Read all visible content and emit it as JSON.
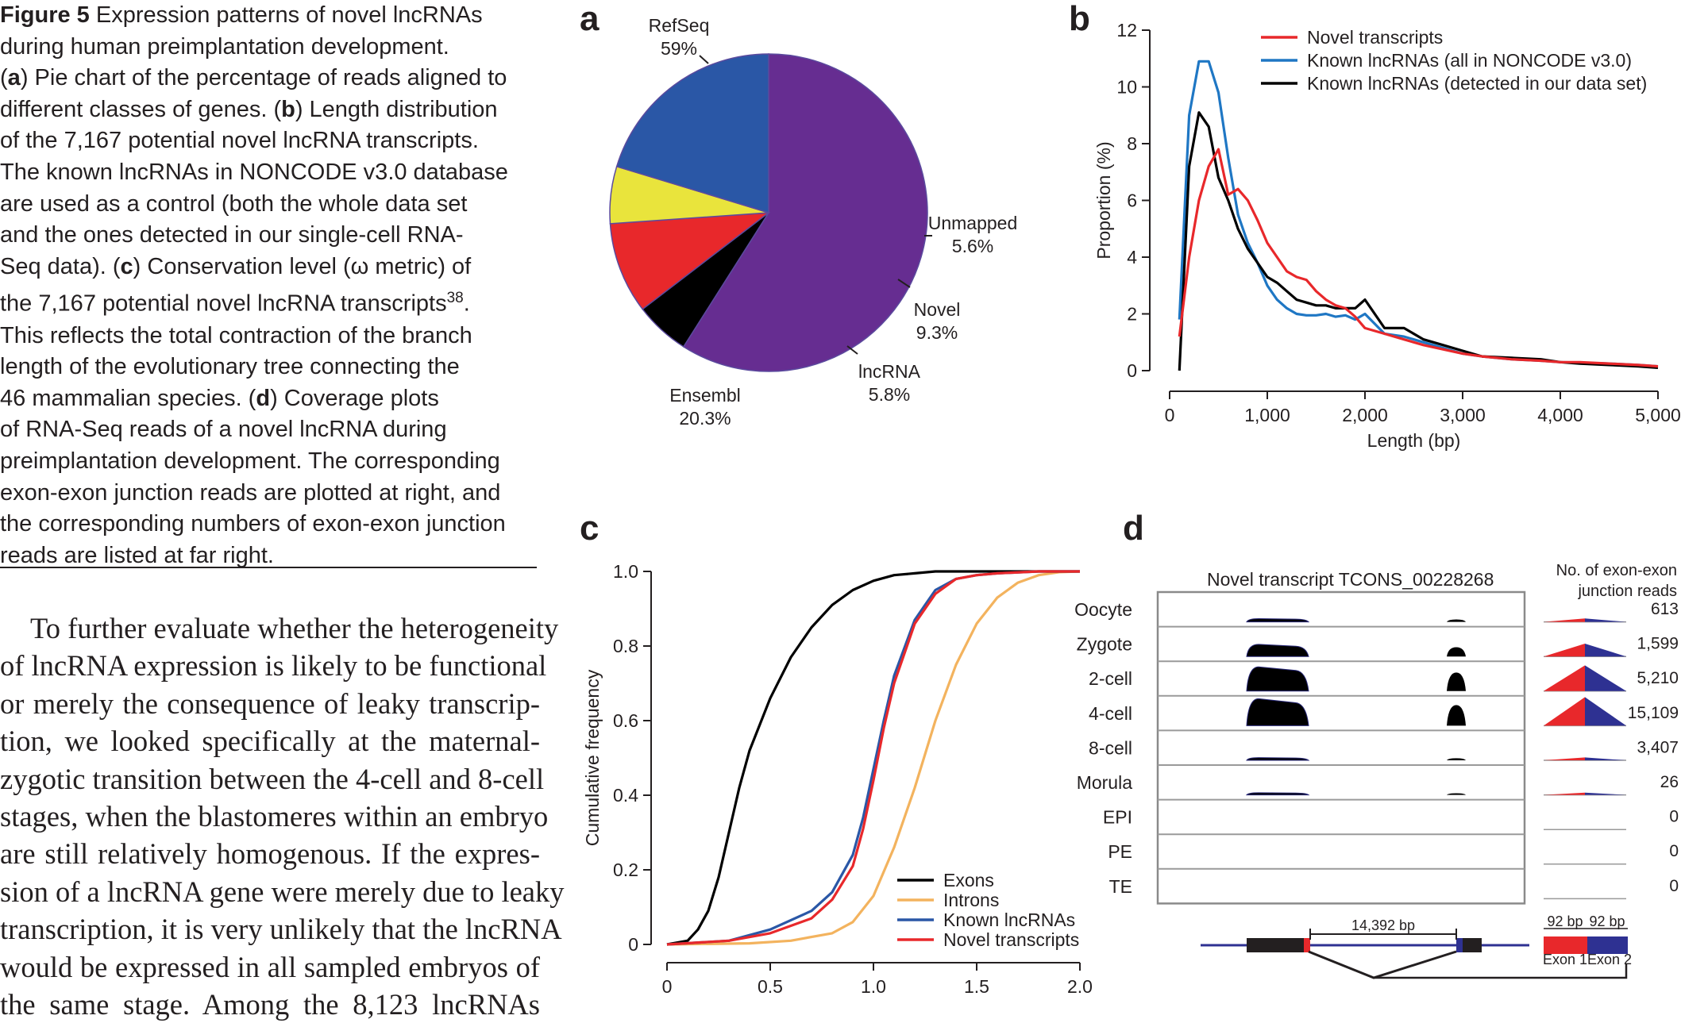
{
  "caption": {
    "lines": [
      {
        "pre": "",
        "bold": "Figure 5",
        "post": "  Expression patterns of novel lncRNAs"
      },
      {
        "pre": "during human preimplantation development.",
        "bold": "",
        "post": ""
      },
      {
        "pre": "(",
        "bold": "a",
        "post": ") Pie chart of the percentage of reads aligned to"
      },
      {
        "pre": "different classes of genes. (",
        "bold": "b",
        "post": ") Length distribution"
      },
      {
        "pre": "of the 7,167 potential novel lncRNA transcripts.",
        "bold": "",
        "post": ""
      },
      {
        "pre": "The known lncRNAs in NONCODE v3.0 database",
        "bold": "",
        "post": ""
      },
      {
        "pre": "are used as a control (both the whole data set",
        "bold": "",
        "post": ""
      },
      {
        "pre": "and the ones detected in our single-cell RNA-",
        "bold": "",
        "post": ""
      },
      {
        "pre": "Seq data). (",
        "bold": "c",
        "post": ") Conservation level (ω metric) of"
      },
      {
        "pre": "the 7,167 potential novel lncRNA transcripts",
        "bold": "",
        "post": "",
        "sup": "38",
        "after": "."
      },
      {
        "pre": "This reflects the total contraction of the branch",
        "bold": "",
        "post": ""
      },
      {
        "pre": "length of the evolutionary tree connecting the",
        "bold": "",
        "post": ""
      },
      {
        "pre": "46 mammalian species. (",
        "bold": "d",
        "post": ") Coverage plots"
      },
      {
        "pre": "of RNA-Seq reads of a novel lncRNA during",
        "bold": "",
        "post": ""
      },
      {
        "pre": "preimplantation development. The corresponding",
        "bold": "",
        "post": ""
      },
      {
        "pre": "exon-exon junction reads are plotted at right, and",
        "bold": "",
        "post": ""
      },
      {
        "pre": "the corresponding numbers of exon-exon junction",
        "bold": "",
        "post": ""
      },
      {
        "pre": "reads are listed at far right.",
        "bold": "",
        "post": ""
      }
    ]
  },
  "body": {
    "lines": [
      "To further evaluate whether the heterogeneity",
      "of lncRNA expression is likely to be functional",
      "or merely the consequence of leaky transcrip-",
      "tion, we looked specifically at the maternal-",
      "zygotic transition between the 4-cell and 8-cell",
      "stages, when the blastomeres within an embryo",
      "are still relatively homogenous. If the expres-",
      "sion of a lncRNA gene were merely due to leaky",
      "transcription, it is very unlikely that the lncRNA",
      "would be expressed in all sampled embryos of",
      "the same stage. Among the 8,123 lncRNAs"
    ]
  },
  "panels": {
    "a": "a",
    "b": "b",
    "c": "c",
    "d": "d"
  },
  "chart_data": [
    {
      "type": "pie",
      "panel": "a",
      "categories": [
        "RefSeq",
        "Unmapped",
        "Novel",
        "lncRNA",
        "Ensembl"
      ],
      "values": [
        59,
        5.6,
        9.3,
        5.8,
        20.3
      ],
      "value_labels": [
        "59%",
        "5.6%",
        "9.3%",
        "5.8%",
        "20.3%"
      ],
      "colors": [
        "#662d91",
        "#000000",
        "#e8282b",
        "#e9e43c",
        "#2a57a6"
      ],
      "start_angle_deg": 0,
      "direction": "clockwise"
    },
    {
      "type": "line",
      "panel": "b",
      "xlabel": "Length (bp)",
      "ylabel": "Proportion (%)",
      "xlim": [
        0,
        5000
      ],
      "ylim": [
        0,
        12
      ],
      "x_ticks": [
        0,
        1000,
        2000,
        3000,
        4000,
        5000
      ],
      "x_tick_labels": [
        "0",
        "1,000",
        "2,000",
        "3,000",
        "4,000",
        "5,000"
      ],
      "y_ticks": [
        0,
        2,
        4,
        6,
        8,
        10,
        12
      ],
      "y_tick_labels": [
        "0",
        "2",
        "4",
        "6",
        "8",
        "10",
        "12"
      ],
      "legend_position": "top-right",
      "series": [
        {
          "name": "Novel transcripts",
          "color": "#e8282b",
          "x": [
            100,
            200,
            300,
            400,
            500,
            600,
            700,
            800,
            900,
            1000,
            1100,
            1200,
            1300,
            1400,
            1500,
            1600,
            1700,
            1800,
            1900,
            2000,
            2200,
            2400,
            2600,
            2800,
            3000,
            3200,
            3500,
            3800,
            4000,
            4200,
            4500,
            4800,
            5000
          ],
          "y": [
            1.2,
            4.0,
            6.0,
            7.2,
            7.8,
            6.2,
            6.4,
            6.0,
            5.3,
            4.5,
            4.0,
            3.5,
            3.3,
            3.2,
            2.8,
            2.5,
            2.3,
            2.2,
            1.9,
            1.5,
            1.3,
            1.1,
            0.9,
            0.75,
            0.6,
            0.5,
            0.4,
            0.35,
            0.3,
            0.3,
            0.25,
            0.2,
            0.15
          ]
        },
        {
          "name": "Known lncRNAs (all in NONCODE v3.0)",
          "color": "#1f77c4",
          "x": [
            100,
            200,
            300,
            400,
            500,
            600,
            700,
            800,
            900,
            1000,
            1100,
            1200,
            1300,
            1400,
            1500,
            1600,
            1700,
            1800,
            1900,
            2000,
            2200,
            2400,
            2600,
            2800,
            3000,
            3200,
            3500,
            3800,
            4000,
            4200,
            4500,
            4800,
            5000
          ],
          "y": [
            1.8,
            9.0,
            10.9,
            10.9,
            9.8,
            7.5,
            5.5,
            4.5,
            3.8,
            3.0,
            2.5,
            2.2,
            2.0,
            1.95,
            1.95,
            2.0,
            1.9,
            1.95,
            1.8,
            2.0,
            1.3,
            1.2,
            1.0,
            0.8,
            0.6,
            0.5,
            0.4,
            0.35,
            0.3,
            0.28,
            0.25,
            0.2,
            0.15
          ]
        },
        {
          "name": "Known lncRNAs (detected in our data set)",
          "color": "#000000",
          "x": [
            100,
            200,
            300,
            400,
            500,
            600,
            700,
            800,
            900,
            1000,
            1100,
            1200,
            1300,
            1400,
            1500,
            1600,
            1700,
            1800,
            1900,
            2000,
            2200,
            2400,
            2600,
            2800,
            3000,
            3200,
            3500,
            3800,
            4000,
            4200,
            4500,
            4800,
            5000
          ],
          "y": [
            0.0,
            7.2,
            9.1,
            8.6,
            6.8,
            6.0,
            5.0,
            4.3,
            3.8,
            3.3,
            3.1,
            2.8,
            2.5,
            2.4,
            2.3,
            2.3,
            2.2,
            2.2,
            2.2,
            2.5,
            1.5,
            1.5,
            1.1,
            0.9,
            0.7,
            0.5,
            0.45,
            0.4,
            0.3,
            0.25,
            0.2,
            0.15,
            0.1
          ]
        }
      ]
    },
    {
      "type": "line",
      "panel": "c",
      "xlabel": "",
      "ylabel": "Cumulative frequency",
      "xlim": [
        0,
        2.0
      ],
      "ylim": [
        0,
        1.0
      ],
      "x_ticks": [
        0,
        0.5,
        1.0,
        1.5,
        2.0
      ],
      "x_tick_labels": [
        "0",
        "0.5",
        "1.0",
        "1.5",
        "2.0"
      ],
      "y_ticks": [
        0,
        0.2,
        0.4,
        0.6,
        0.8,
        1.0
      ],
      "y_tick_labels": [
        "0",
        "0.2",
        "0.4",
        "0.6",
        "0.8",
        "1.0"
      ],
      "legend_position": "bottom-right",
      "series": [
        {
          "name": "Exons",
          "color": "#000000",
          "x": [
            0,
            0.1,
            0.15,
            0.2,
            0.25,
            0.3,
            0.35,
            0.4,
            0.5,
            0.6,
            0.7,
            0.8,
            0.9,
            1.0,
            1.1,
            1.2,
            1.3,
            1.5,
            2.0
          ],
          "y": [
            0,
            0.01,
            0.04,
            0.09,
            0.18,
            0.3,
            0.42,
            0.52,
            0.66,
            0.77,
            0.85,
            0.91,
            0.95,
            0.975,
            0.99,
            0.995,
            1.0,
            1.0,
            1.0
          ]
        },
        {
          "name": "Introns",
          "color": "#f3b35e",
          "x": [
            0,
            0.4,
            0.6,
            0.8,
            0.9,
            1.0,
            1.1,
            1.2,
            1.3,
            1.4,
            1.5,
            1.6,
            1.7,
            1.8,
            1.9,
            2.0
          ],
          "y": [
            0,
            0.003,
            0.01,
            0.03,
            0.06,
            0.13,
            0.26,
            0.42,
            0.6,
            0.75,
            0.86,
            0.93,
            0.97,
            0.99,
            0.998,
            1.0
          ]
        },
        {
          "name": "Known lncRNAs",
          "color": "#2a57a6",
          "x": [
            0,
            0.3,
            0.5,
            0.7,
            0.8,
            0.9,
            0.95,
            1.0,
            1.05,
            1.1,
            1.2,
            1.3,
            1.4,
            1.5,
            1.6,
            1.8,
            2.0
          ],
          "y": [
            0,
            0.01,
            0.04,
            0.09,
            0.14,
            0.24,
            0.34,
            0.47,
            0.6,
            0.72,
            0.87,
            0.95,
            0.98,
            0.99,
            0.995,
            1.0,
            1.0
          ]
        },
        {
          "name": "Novel transcripts",
          "color": "#e8282b",
          "x": [
            0,
            0.3,
            0.5,
            0.7,
            0.8,
            0.9,
            0.95,
            1.0,
            1.05,
            1.1,
            1.2,
            1.3,
            1.4,
            1.5,
            1.6,
            1.8,
            2.0
          ],
          "y": [
            0,
            0.01,
            0.03,
            0.07,
            0.12,
            0.21,
            0.31,
            0.44,
            0.58,
            0.7,
            0.86,
            0.94,
            0.98,
            0.99,
            0.995,
            1.0,
            1.0
          ]
        }
      ]
    },
    {
      "type": "other",
      "panel": "d",
      "title": "Novel transcript TCONS_00228268",
      "junction_title_line1": "No. of exon-exon",
      "junction_title_line2": "junction reads",
      "stages": [
        {
          "name": "Oocyte",
          "junction_reads": "613",
          "level": 0.12
        },
        {
          "name": "Zygote",
          "junction_reads": "1,599",
          "level": 0.45
        },
        {
          "name": "2-cell",
          "junction_reads": "5,210",
          "level": 0.9
        },
        {
          "name": "4-cell",
          "junction_reads": "15,109",
          "level": 1.0
        },
        {
          "name": "8-cell",
          "junction_reads": "3,407",
          "level": 0.1
        },
        {
          "name": "Morula",
          "junction_reads": "26",
          "level": 0.08
        },
        {
          "name": "EPI",
          "junction_reads": "0",
          "level": 0
        },
        {
          "name": "PE",
          "junction_reads": "0",
          "level": 0
        },
        {
          "name": "TE",
          "junction_reads": "0",
          "level": 0
        }
      ],
      "intron_label": "14,392 bp",
      "exon1_bp": "92 bp",
      "exon2_bp": "92 bp",
      "exon1_label": "Exon 1",
      "exon2_label": "Exon 2"
    }
  ]
}
